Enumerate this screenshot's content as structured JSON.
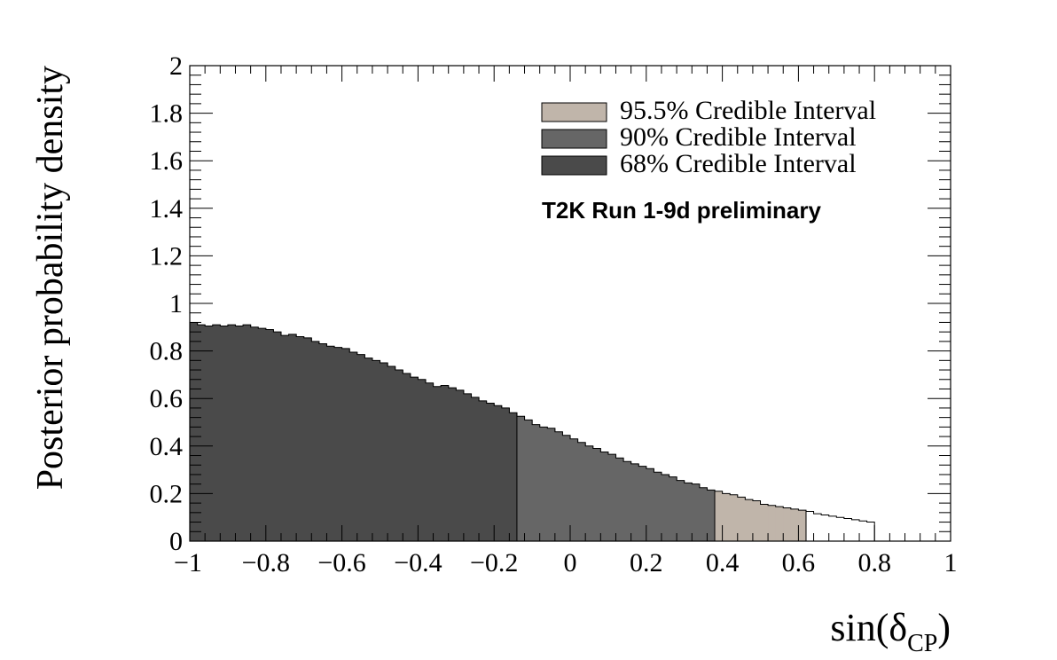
{
  "chart_data": {
    "type": "histogram",
    "title": "",
    "xlabel": "sin(δCP)",
    "xlabel_parts": {
      "main": "sin(δ",
      "sub": "CP",
      "close": ")"
    },
    "ylabel": "Posterior probability density",
    "xlim": [
      -1,
      1
    ],
    "ylim": [
      0,
      2
    ],
    "x_ticks": [
      -1,
      -0.8,
      -0.6,
      -0.4,
      -0.2,
      0,
      0.2,
      0.4,
      0.6,
      0.8,
      1
    ],
    "x_tick_labels": [
      "−1",
      "−0.8",
      "−0.6",
      "−0.4",
      "−0.2",
      "0",
      "0.2",
      "0.4",
      "0.6",
      "0.8",
      "1"
    ],
    "y_ticks": [
      0,
      0.2,
      0.4,
      0.6,
      0.8,
      1,
      1.2,
      1.4,
      1.6,
      1.8,
      2
    ],
    "y_tick_labels": [
      "0",
      "0.2",
      "0.4",
      "0.6",
      "0.8",
      "1",
      "1.2",
      "1.4",
      "1.6",
      "1.8",
      "2"
    ],
    "bin_width": 0.02,
    "bin_edges_start": -1,
    "values": [
      0.92,
      0.91,
      0.905,
      0.91,
      0.905,
      0.91,
      0.905,
      0.91,
      0.9,
      0.895,
      0.89,
      0.88,
      0.865,
      0.87,
      0.86,
      0.855,
      0.84,
      0.83,
      0.82,
      0.815,
      0.81,
      0.795,
      0.785,
      0.77,
      0.76,
      0.75,
      0.735,
      0.72,
      0.705,
      0.69,
      0.68,
      0.665,
      0.65,
      0.655,
      0.645,
      0.635,
      0.62,
      0.605,
      0.59,
      0.58,
      0.57,
      0.56,
      0.54,
      0.525,
      0.51,
      0.49,
      0.48,
      0.475,
      0.46,
      0.445,
      0.43,
      0.415,
      0.4,
      0.39,
      0.375,
      0.365,
      0.35,
      0.335,
      0.325,
      0.315,
      0.305,
      0.29,
      0.28,
      0.27,
      0.255,
      0.245,
      0.24,
      0.225,
      0.215,
      0.21,
      0.2,
      0.195,
      0.185,
      0.175,
      0.17,
      0.155,
      0.15,
      0.145,
      0.14,
      0.135,
      0.13,
      0.125,
      0.115,
      0.11,
      0.105,
      0.1,
      0.095,
      0.09,
      0.085,
      0.08
    ],
    "intervals": [
      {
        "name": "95.5% Credible Interval",
        "from": -1,
        "to": 0.62,
        "color": "#c0b5aa"
      },
      {
        "name": "90% Credible Interval",
        "from": -1,
        "to": 0.38,
        "color": "#666666"
      },
      {
        "name": "68% Credible Interval",
        "from": -1,
        "to": -0.14,
        "color": "#4a4a4a"
      }
    ],
    "legend_position": "top-right",
    "annotation": "T2K Run 1-9d preliminary",
    "grid": false
  }
}
